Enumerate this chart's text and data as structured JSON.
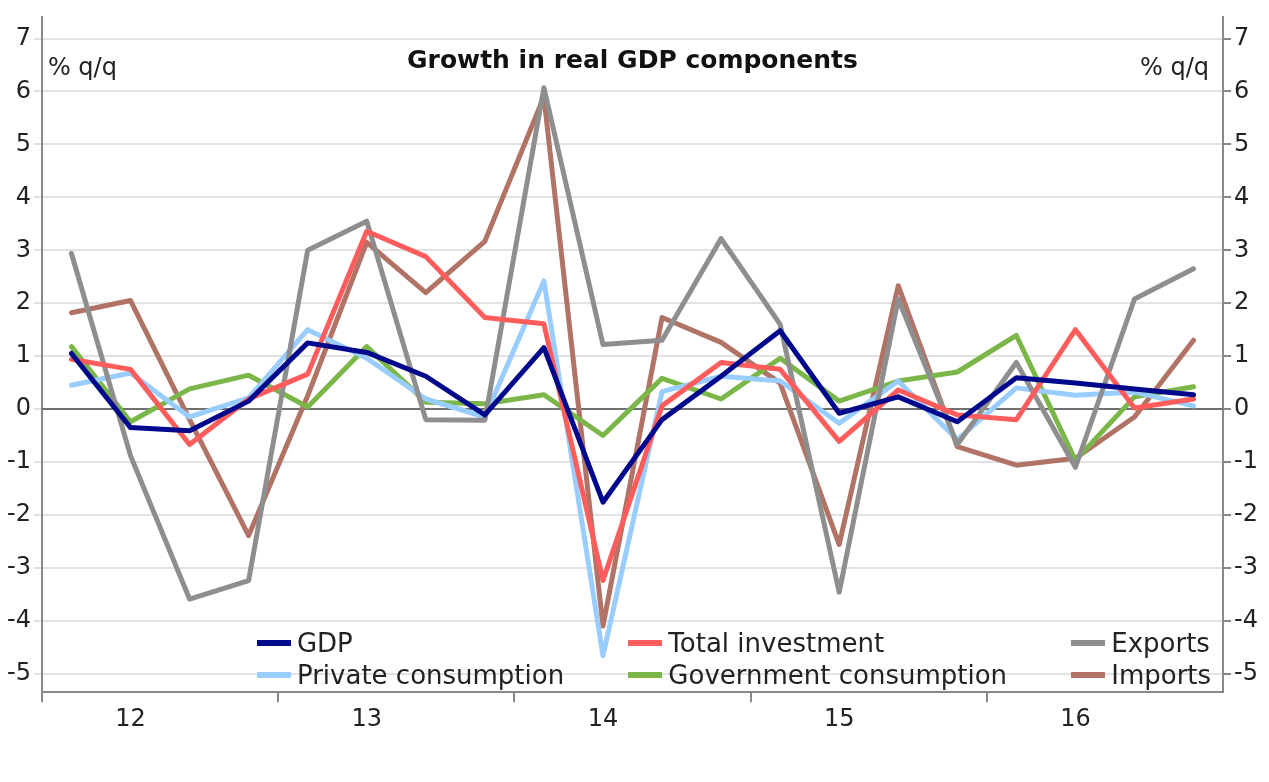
{
  "chart_data": {
    "type": "line",
    "title": "Growth in real GDP components",
    "ylabel": "% q/q",
    "y2label": "% q/q",
    "categories": [
      null,
      "12",
      null,
      null,
      null,
      "13",
      null,
      null,
      null,
      "14",
      null,
      null,
      null,
      "15",
      null,
      null,
      null,
      "16",
      null,
      null
    ],
    "ylim": [
      -5.35,
      7.4
    ],
    "yticks": [
      -5,
      -4,
      -3,
      -2,
      -1,
      0,
      1,
      2,
      3,
      4,
      5,
      6,
      7
    ],
    "y2lim": [
      -5.35,
      7.4
    ],
    "y2ticks": [
      -5,
      -4,
      -3,
      -2,
      -1,
      0,
      1,
      2,
      3,
      4,
      5,
      6,
      7
    ],
    "grid": "y",
    "legend": "bottom",
    "line_style": "solid",
    "marker": "none",
    "ref_lines": [
      {
        "axis": "y",
        "value": 0,
        "color": "#707070"
      }
    ],
    "series": [
      {
        "name": "GDP",
        "color": "#00088c",
        "values": [
          1.05,
          -0.35,
          -0.41,
          0.15,
          1.25,
          1.07,
          0.62,
          -0.11,
          1.16,
          -1.76,
          -0.2,
          0.62,
          1.48,
          -0.08,
          0.23,
          -0.24,
          0.59,
          0.49,
          0.38,
          0.27
        ]
      },
      {
        "name": "Total investment",
        "color": "#ff5c5c",
        "values": [
          0.94,
          0.75,
          -0.67,
          0.19,
          0.66,
          3.36,
          2.88,
          1.73,
          1.61,
          -3.24,
          0.06,
          0.88,
          0.75,
          -0.61,
          0.36,
          -0.11,
          -0.2,
          1.5,
          0.02,
          0.19
        ]
      },
      {
        "name": "Exports",
        "color": "#8e8e8e",
        "values": [
          2.94,
          -0.88,
          -3.59,
          -3.24,
          3.0,
          3.55,
          -0.2,
          -0.21,
          6.07,
          1.22,
          1.3,
          3.22,
          1.6,
          -3.46,
          2.08,
          -0.67,
          0.88,
          -1.1,
          2.08,
          2.65
        ]
      },
      {
        "name": "Private consumption",
        "color": "#99ccff",
        "values": [
          0.45,
          0.68,
          -0.15,
          0.21,
          1.5,
          0.96,
          0.19,
          -0.15,
          2.42,
          -4.66,
          0.33,
          0.62,
          0.53,
          -0.27,
          0.53,
          -0.58,
          0.4,
          0.26,
          0.32,
          0.06
        ]
      },
      {
        "name": "Government consumption",
        "color": "#7ab648",
        "values": [
          1.18,
          -0.24,
          0.38,
          0.64,
          0.04,
          1.18,
          0.13,
          0.1,
          0.27,
          -0.5,
          0.58,
          0.19,
          0.96,
          0.15,
          0.53,
          0.7,
          1.39,
          -0.97,
          0.23,
          0.42
        ]
      },
      {
        "name": "Imports",
        "color": "#b07365",
        "values": [
          1.82,
          2.05,
          -0.2,
          -2.39,
          0.25,
          3.15,
          2.2,
          3.17,
          5.9,
          -4.1,
          1.73,
          1.26,
          0.49,
          -2.56,
          2.33,
          -0.71,
          -1.06,
          -0.93,
          -0.15,
          1.3
        ]
      }
    ]
  }
}
